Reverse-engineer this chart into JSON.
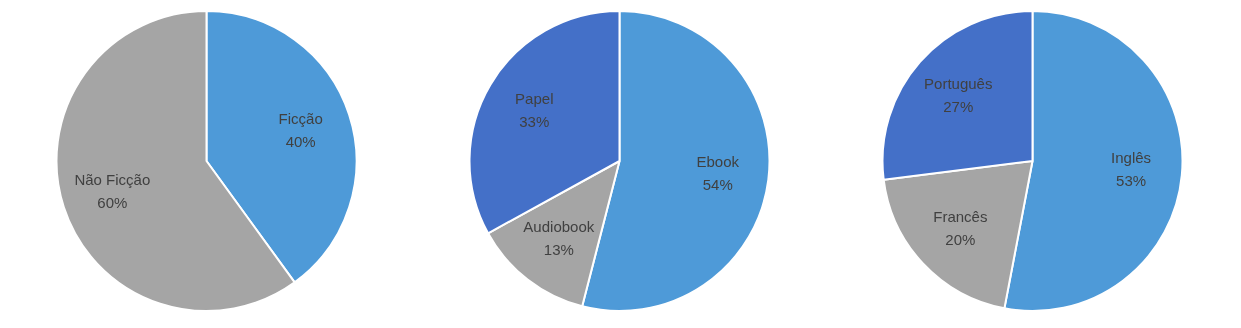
{
  "chart_data": [
    {
      "type": "pie",
      "categories": [
        "Ficção",
        "Não Ficção"
      ],
      "values": [
        40,
        60
      ],
      "colors": [
        "#4e9ad8",
        "#a5a5a5"
      ],
      "value_labels": [
        "40%",
        "60%"
      ],
      "legend": false
    },
    {
      "type": "pie",
      "categories": [
        "Ebook",
        "Audiobook",
        "Papel"
      ],
      "values": [
        54,
        13,
        33
      ],
      "colors": [
        "#4e9ad8",
        "#a5a5a5",
        "#4470c8"
      ],
      "value_labels": [
        "54%",
        "13%",
        "33%"
      ],
      "legend": false
    },
    {
      "type": "pie",
      "categories": [
        "Inglês",
        "Francês",
        "Português"
      ],
      "values": [
        53,
        20,
        27
      ],
      "colors": [
        "#4e9ad8",
        "#a5a5a5",
        "#4470c8"
      ],
      "value_labels": [
        "53%",
        "20%",
        "27%"
      ],
      "legend": false
    }
  ]
}
